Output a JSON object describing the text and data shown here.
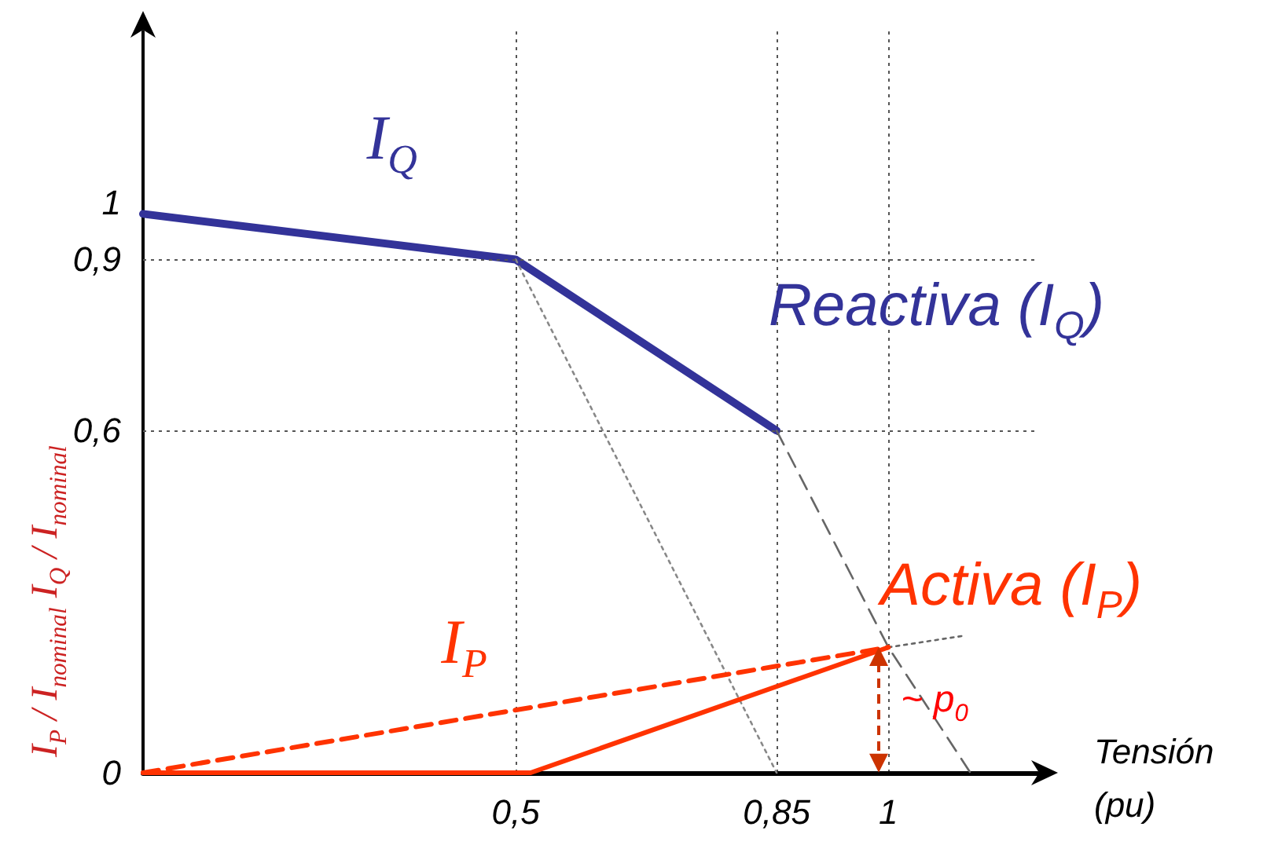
{
  "chart_data": {
    "type": "line",
    "xlabel": "Tensión (pu)",
    "ylabel": "I$_{P}$ / I$_{nominal}$   I$_{Q}$ / I$_{nominal}$",
    "xlim": [
      0,
      1.2
    ],
    "xticks": [
      {
        "value": 0.5,
        "label": "0,5"
      },
      {
        "value": 0.85,
        "label": "0,85"
      },
      {
        "value": 1,
        "label": "1"
      }
    ],
    "ylim": [
      0,
      1.3
    ],
    "yticks": [
      {
        "value": 0,
        "label": "0"
      },
      {
        "value": 0.6,
        "label": "0,6"
      },
      {
        "value": 0.9,
        "label": "0,9"
      },
      {
        "value": 1,
        "label": "1"
      }
    ],
    "grid": "x",
    "legend": false,
    "marker": "none",
    "series": [
      {
        "name": "Reactiva (I$_{Q}$)",
        "color": "#333399",
        "line_style": "solid",
        "x": [
          0,
          0.5,
          0.85
        ],
        "values": [
          0.98,
          0.9,
          0.6
        ]
      },
      {
        "color": "#666666",
        "line_style": "dashed",
        "x": [
          0.85,
          1,
          1.11
        ],
        "values": [
          0.6,
          0.22,
          0
        ]
      },
      {
        "color": "#666666",
        "line_style": "dotted",
        "x": [
          1,
          1.1
        ],
        "values": [
          0.22,
          0.24
        ]
      },
      {
        "color": "#888888",
        "line_style": "dotted",
        "x": [
          0.5,
          0.85
        ],
        "values": [
          0.9,
          0
        ]
      },
      {
        "color": "#ff3300",
        "line_style": "dashed",
        "x": [
          0,
          1
        ],
        "values": [
          0,
          0.22
        ]
      },
      {
        "name": "Activa (I$_{P}$)",
        "color": "#ff3300",
        "line_style": "solid",
        "x": [
          0,
          0.52,
          1
        ],
        "values": [
          0,
          0,
          0.22
        ]
      }
    ],
    "ref_lines": [
      {
        "axis": "y",
        "value": 0.9,
        "color": "#555555",
        "line_style": "dotted"
      },
      {
        "axis": "y",
        "value": 0.6,
        "color": "#555555",
        "line_style": "dotted"
      }
    ],
    "annotations": [
      "I$_{Q}$",
      "I$_{P}$",
      "~ p$_{0}$"
    ]
  }
}
